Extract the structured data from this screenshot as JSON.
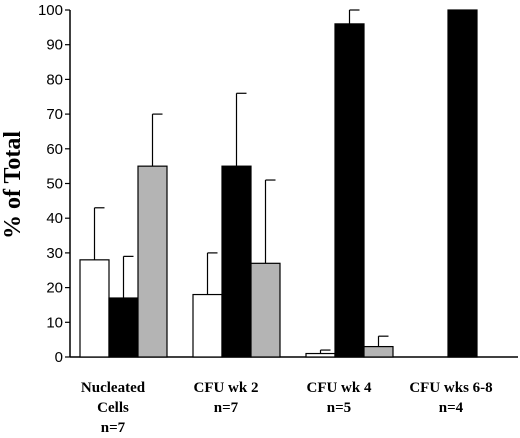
{
  "chart_data": {
    "type": "bar",
    "ylabel": "% of Total",
    "xlabel": "",
    "ylim": [
      0,
      100
    ],
    "yticks": [
      0,
      10,
      20,
      30,
      40,
      50,
      60,
      70,
      80,
      90,
      100
    ],
    "grid": false,
    "categories": [
      [
        "Nucleated",
        "Cells",
        "n=7"
      ],
      [
        "CFU wk 2",
        "n=7"
      ],
      [
        "CFU wk 4",
        "n=5"
      ],
      [
        "CFU wks 6-8",
        "n=4"
      ]
    ],
    "series": [
      {
        "color": "#ffffff",
        "values": [
          28,
          18,
          1,
          0
        ],
        "errors": [
          15,
          12,
          1,
          null
        ]
      },
      {
        "color": "#000000",
        "values": [
          17,
          55,
          96,
          100
        ],
        "errors": [
          12,
          21,
          4,
          null
        ]
      },
      {
        "color": "#b4b4b4",
        "values": [
          55,
          27,
          3,
          0
        ],
        "errors": [
          15,
          24,
          3,
          null
        ]
      }
    ]
  }
}
